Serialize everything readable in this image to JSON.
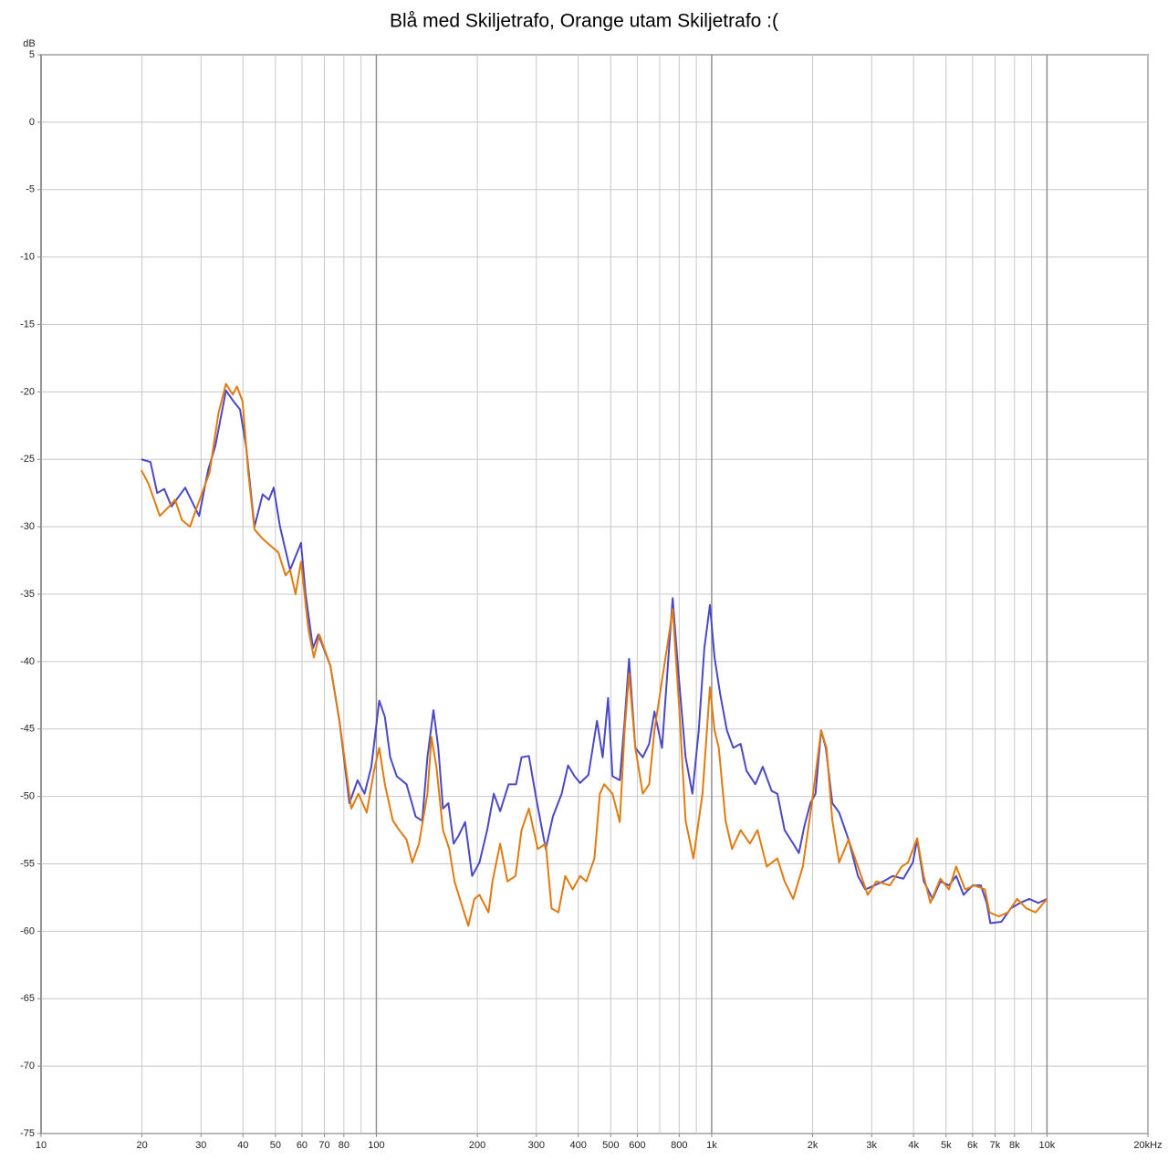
{
  "chart_data": {
    "type": "line",
    "title": "Blå med Skiljetrafo, Orange utam Skiljetrafo :(",
    "y_label": "dB",
    "x_log": true,
    "grid": true,
    "xlim": [
      10,
      20000
    ],
    "ylim": [
      -75,
      5
    ],
    "yticks": [
      5,
      0,
      -5,
      -10,
      -15,
      -20,
      -25,
      -30,
      -35,
      -40,
      -45,
      -50,
      -55,
      -60,
      -65,
      -70,
      -75
    ],
    "xticks": [
      10,
      20,
      30,
      40,
      50,
      60,
      70,
      80,
      100,
      200,
      300,
      400,
      500,
      600,
      800,
      {
        "value": 1000,
        "label": "1k"
      },
      {
        "value": 2000,
        "label": "2k"
      },
      {
        "value": 3000,
        "label": "3k"
      },
      {
        "value": 4000,
        "label": "4k"
      },
      {
        "value": 5000,
        "label": "5k"
      },
      {
        "value": 6000,
        "label": "6k"
      },
      {
        "value": 7000,
        "label": "7k"
      },
      {
        "value": 8000,
        "label": "8k"
      },
      {
        "value": 10000,
        "label": "10k"
      },
      {
        "value": 20000,
        "label": "20kHz"
      }
    ],
    "x_minor_grid": [
      90,
      700,
      900,
      9000
    ],
    "series": [
      {
        "color": "#4a48c4",
        "x": [
          19.9,
          21.2,
          22.2,
          23.3,
          24.5,
          26.9,
          29.6,
          31.5,
          33.1,
          35.6,
          37.5,
          39.2,
          40.9,
          43.3,
          45.8,
          47.8,
          49.4,
          51.6,
          55.3,
          59.6,
          61.5,
          64.7,
          67.1,
          72.9,
          77.6,
          83.1,
          87.9,
          92.2,
          96.6,
          102,
          106,
          110,
          115,
          123,
          131,
          137,
          142,
          148,
          153,
          158,
          164,
          170,
          176,
          184,
          193,
          203,
          214,
          224,
          234,
          248,
          261,
          271,
          285,
          300,
          320,
          336,
          357,
          373,
          390,
          405,
          429,
          455,
          473,
          491,
          506,
          532,
          550,
          567,
          592,
          623,
          651,
          675,
          711,
          743,
          765,
          795,
          836,
          876,
          915,
          951,
          988,
          1020,
          1060,
          1110,
          1160,
          1220,
          1270,
          1350,
          1420,
          1510,
          1570,
          1650,
          1750,
          1820,
          1890,
          1970,
          2040,
          2120,
          2190,
          2290,
          2400,
          2560,
          2730,
          2870,
          3060,
          3250,
          3470,
          3730,
          3980,
          4100,
          4290,
          4560,
          4810,
          5100,
          5360,
          5640,
          6000,
          6350,
          6610,
          6780,
          7310,
          7800,
          8310,
          8850,
          9420,
          10000
        ],
        "values": [
          -25.0,
          -25.2,
          -27.5,
          -27.2,
          -28.5,
          -27.1,
          -29.2,
          -25.8,
          -24.0,
          -19.9,
          -20.7,
          -21.3,
          -24.1,
          -30.0,
          -27.6,
          -28.0,
          -27.1,
          -30.0,
          -33.2,
          -31.2,
          -35.0,
          -39.0,
          -38.0,
          -40.3,
          -44.4,
          -50.5,
          -48.8,
          -49.8,
          -47.8,
          -42.9,
          -44.1,
          -47.1,
          -48.5,
          -49.1,
          -51.5,
          -51.8,
          -47.1,
          -43.6,
          -46.4,
          -50.9,
          -50.5,
          -53.5,
          -52.9,
          -51.9,
          -55.9,
          -54.9,
          -52.5,
          -49.8,
          -51.1,
          -49.1,
          -49.1,
          -47.1,
          -47.0,
          -50.2,
          -53.9,
          -51.5,
          -49.8,
          -47.7,
          -48.5,
          -49.0,
          -48.4,
          -44.4,
          -47.1,
          -42.7,
          -48.5,
          -48.8,
          -44.4,
          -39.8,
          -46.4,
          -47.1,
          -46.1,
          -43.7,
          -46.4,
          -39.7,
          -35.3,
          -40.7,
          -47.1,
          -49.8,
          -45.1,
          -39.0,
          -35.8,
          -39.7,
          -42.4,
          -45.1,
          -46.4,
          -46.1,
          -48.1,
          -49.1,
          -47.8,
          -49.6,
          -49.8,
          -52.5,
          -53.5,
          -54.2,
          -52.2,
          -50.5,
          -49.8,
          -45.1,
          -46.4,
          -50.5,
          -51.2,
          -53.2,
          -55.9,
          -56.9,
          -56.6,
          -56.3,
          -55.9,
          -56.1,
          -54.9,
          -53.2,
          -56.3,
          -57.6,
          -56.3,
          -56.6,
          -55.9,
          -57.3,
          -56.6,
          -56.6,
          -57.9,
          -59.4,
          -59.3,
          -58.3,
          -57.9,
          -57.6,
          -57.9,
          -57.6
        ]
      },
      {
        "color": "#e07b10",
        "x": [
          19.9,
          20.9,
          22.6,
          24.1,
          25.1,
          26.3,
          27.8,
          29.6,
          31.8,
          33.8,
          35.6,
          37.3,
          38.4,
          39.9,
          41.5,
          43.3,
          45.8,
          48.8,
          51.0,
          53.6,
          55.3,
          57.4,
          59.6,
          62.7,
          65.1,
          67.6,
          72.9,
          77.6,
          84.2,
          88.4,
          93.6,
          98.4,
          102,
          106,
          112,
          117,
          123,
          128,
          134,
          142,
          146,
          151,
          158,
          165,
          171,
          179,
          188,
          196,
          203,
          216,
          222,
          234,
          246,
          260,
          271,
          285,
          303,
          320,
          333,
          349,
          366,
          385,
          405,
          423,
          447,
          464,
          478,
          506,
          532,
          550,
          567,
          592,
          623,
          651,
          675,
          711,
          743,
          765,
          800,
          836,
          882,
          939,
          988,
          1020,
          1050,
          1100,
          1150,
          1220,
          1300,
          1370,
          1460,
          1570,
          1650,
          1750,
          1870,
          1990,
          2120,
          2200,
          2290,
          2400,
          2560,
          2730,
          2920,
          3100,
          3400,
          3690,
          3850,
          4100,
          4290,
          4490,
          4810,
          5100,
          5360,
          5700,
          6080,
          6530,
          6740,
          7180,
          7650,
          8150,
          8680,
          9250,
          10000
        ],
        "values": [
          -25.8,
          -26.8,
          -29.2,
          -28.5,
          -28.0,
          -29.5,
          -30.0,
          -28.1,
          -26.0,
          -21.6,
          -19.4,
          -20.2,
          -19.6,
          -20.7,
          -26.0,
          -30.2,
          -30.9,
          -31.5,
          -31.9,
          -33.6,
          -33.2,
          -35.0,
          -32.6,
          -37.6,
          -39.7,
          -38.0,
          -40.3,
          -44.4,
          -50.9,
          -49.8,
          -51.2,
          -48.1,
          -46.4,
          -49.1,
          -51.8,
          -52.5,
          -53.2,
          -54.9,
          -53.5,
          -49.8,
          -45.6,
          -47.8,
          -52.5,
          -53.9,
          -56.3,
          -57.9,
          -59.6,
          -57.6,
          -57.3,
          -58.6,
          -56.3,
          -53.5,
          -56.3,
          -55.9,
          -52.5,
          -50.9,
          -53.9,
          -53.5,
          -58.3,
          -58.6,
          -55.9,
          -56.9,
          -55.9,
          -56.3,
          -54.6,
          -49.8,
          -49.1,
          -49.8,
          -51.9,
          -45.1,
          -40.9,
          -46.4,
          -49.8,
          -49.1,
          -45.1,
          -41.4,
          -38.3,
          -36.1,
          -43.4,
          -51.8,
          -54.6,
          -49.8,
          -41.9,
          -45.1,
          -46.4,
          -51.8,
          -53.9,
          -52.5,
          -53.5,
          -52.5,
          -55.2,
          -54.6,
          -56.3,
          -57.6,
          -55.2,
          -50.5,
          -45.1,
          -46.4,
          -51.8,
          -54.9,
          -53.2,
          -55.2,
          -57.3,
          -56.3,
          -56.6,
          -55.2,
          -54.9,
          -53.1,
          -55.9,
          -57.9,
          -56.1,
          -56.9,
          -55.2,
          -56.9,
          -56.6,
          -56.9,
          -58.6,
          -58.9,
          -58.6,
          -57.6,
          -58.3,
          -58.6,
          -57.6
        ]
      }
    ]
  }
}
